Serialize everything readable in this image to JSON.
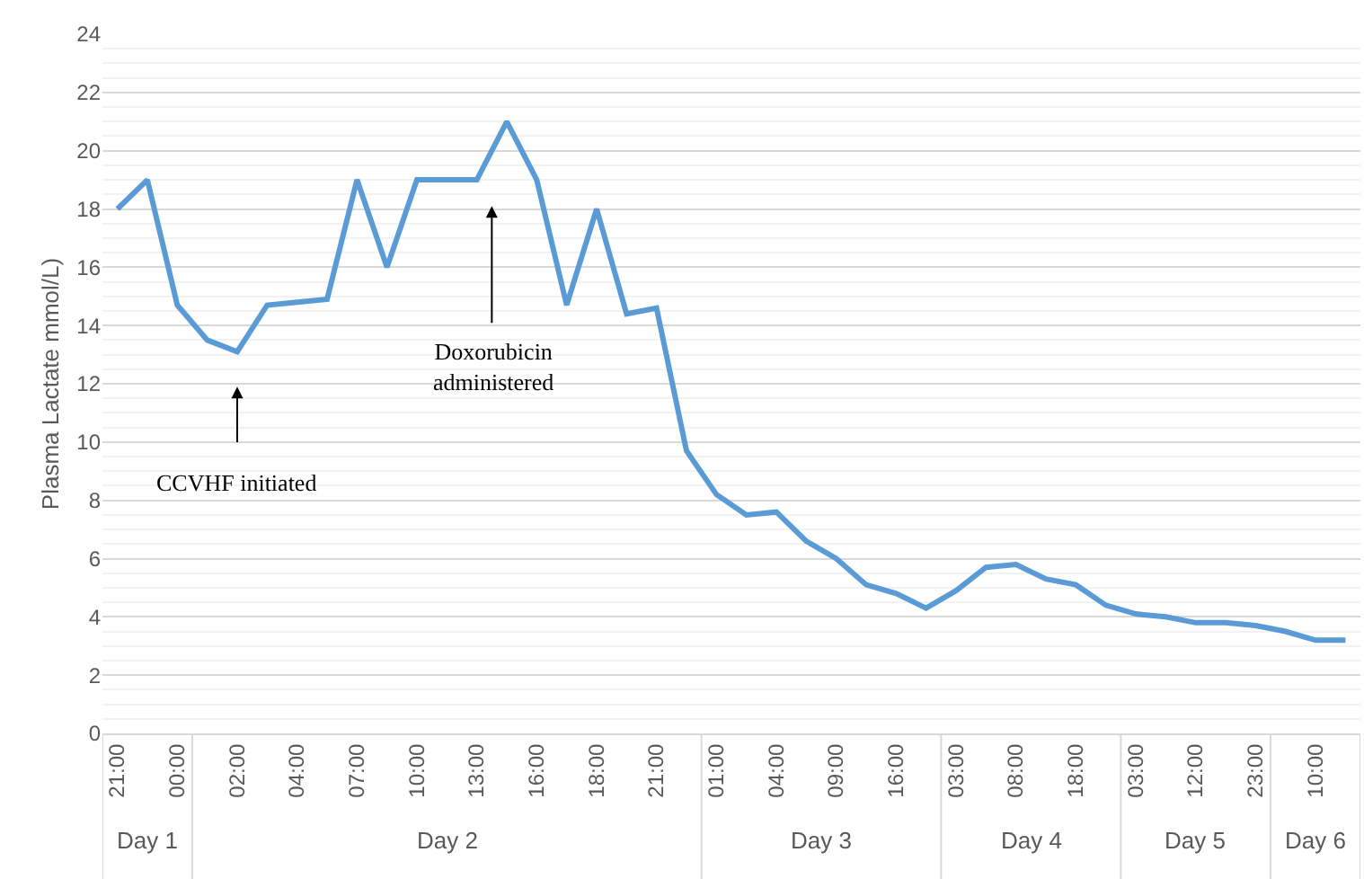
{
  "chart_data": {
    "type": "line",
    "ylabel": "Plasma Lactate mmol/L)",
    "categories": [
      "21:00",
      null,
      "00:00",
      null,
      "02:00",
      null,
      "04:00",
      null,
      "07:00",
      null,
      "10:00",
      null,
      "13:00",
      null,
      "16:00",
      null,
      "18:00",
      null,
      "21:00",
      null,
      "01:00",
      null,
      "04:00",
      null,
      "09:00",
      null,
      "16:00",
      null,
      "03:00",
      null,
      "08:00",
      null,
      "18:00",
      null,
      "03:00",
      null,
      "12:00",
      null,
      "23:00",
      null,
      "10:00",
      null
    ],
    "series": [
      {
        "color": "#5b9bd5",
        "values": [
          18,
          19,
          14.7,
          13.5,
          13.1,
          14.7,
          14.8,
          14.9,
          19,
          16,
          19,
          19,
          19,
          21,
          19,
          14.7,
          18,
          14.4,
          14.6,
          9.7,
          8.2,
          7.5,
          7.6,
          6.6,
          6.0,
          5.1,
          4.8,
          4.3,
          4.9,
          5.7,
          5.8,
          5.3,
          5.1,
          4.4,
          4.1,
          4.0,
          3.8,
          3.8,
          3.7,
          3.5,
          3.2,
          3.2
        ]
      }
    ],
    "ylim": [
      0,
      24
    ],
    "yticks": [
      0,
      2,
      4,
      6,
      8,
      10,
      12,
      14,
      16,
      18,
      20,
      22,
      24
    ],
    "grid": "y",
    "legend": false,
    "marker": "none",
    "line_style": "solid",
    "annotations": [
      "CCVHF initiated",
      "Doxorubicin\nadministered",
      "Day 1",
      "Day 2",
      "Day 3",
      "Day 4",
      "Day 5",
      "Day 6"
    ]
  }
}
